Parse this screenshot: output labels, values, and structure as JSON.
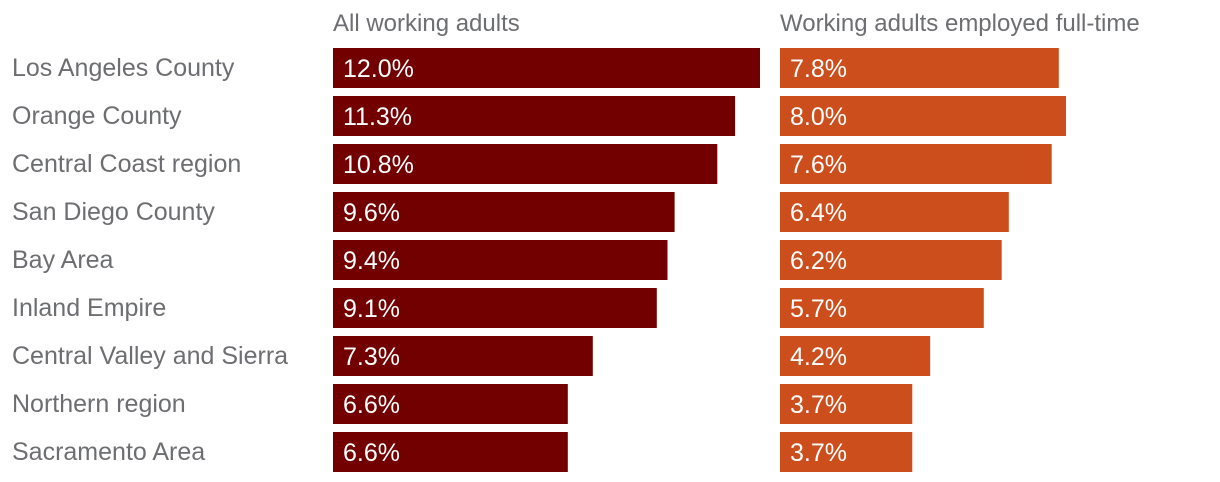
{
  "chart_data": {
    "type": "bar",
    "orientation": "horizontal",
    "categories": [
      "Los Angeles County",
      "Orange County",
      "Central Coast region",
      "San Diego County",
      "Bay Area",
      "Inland Empire",
      "Central Valley and Sierra",
      "Northern region",
      "Sacramento Area"
    ],
    "series": [
      {
        "name": "All working adults",
        "color": "#720000",
        "values": [
          12.0,
          11.3,
          10.8,
          9.6,
          9.4,
          9.1,
          7.3,
          6.6,
          6.6
        ],
        "labels": [
          "12.0%",
          "11.3%",
          "10.8%",
          "9.6%",
          "9.4%",
          "9.1%",
          "7.3%",
          "6.6%",
          "6.6%"
        ]
      },
      {
        "name": "Working adults employed full-time",
        "color": "#cc4e1c",
        "values": [
          7.8,
          8.0,
          7.6,
          6.4,
          6.2,
          5.7,
          4.2,
          3.7,
          3.7
        ],
        "labels": [
          "7.8%",
          "8.0%",
          "7.6%",
          "6.4%",
          "6.2%",
          "5.7%",
          "4.2%",
          "3.7%",
          "3.7%"
        ]
      }
    ],
    "title": "",
    "xlabel": "",
    "ylabel": "",
    "grid": false,
    "legend": "none"
  }
}
